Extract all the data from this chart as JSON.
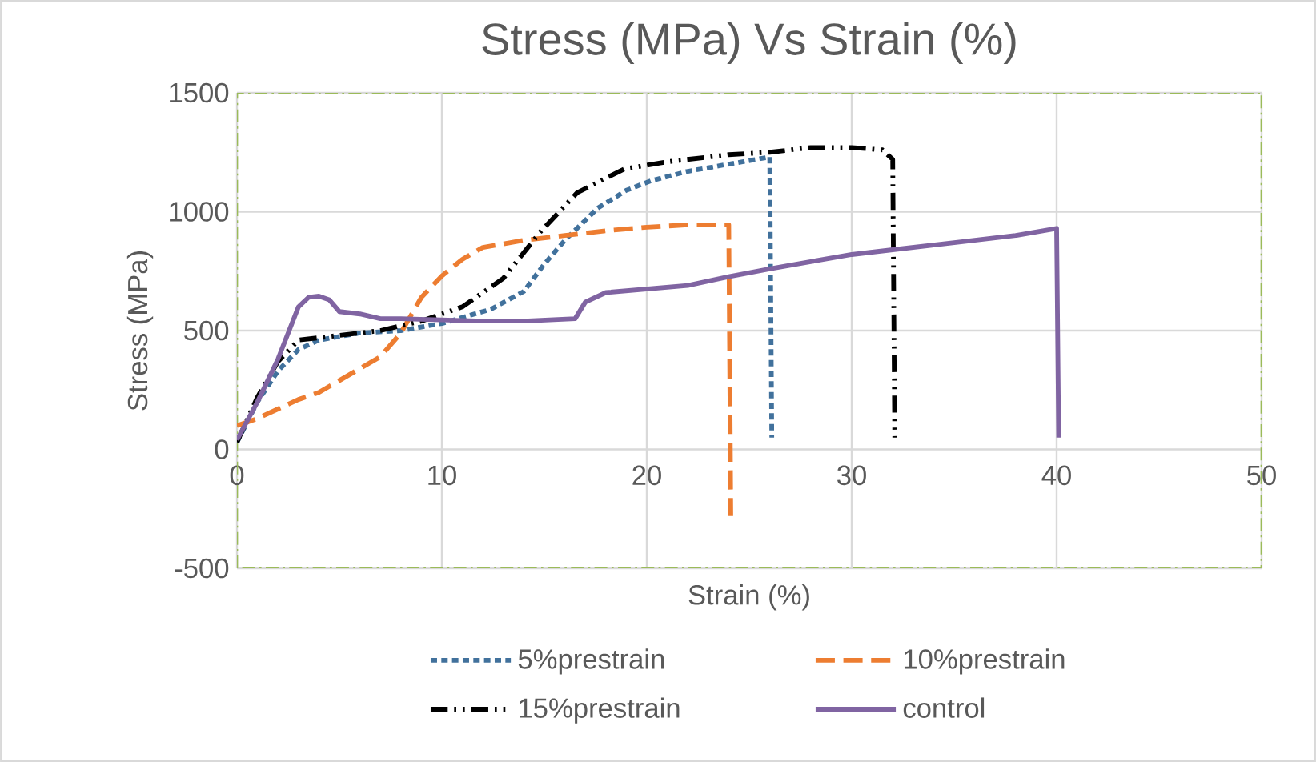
{
  "chart_data": {
    "type": "line",
    "title": "Stress (MPa) Vs Strain (%)",
    "xlabel": "Strain (%)",
    "ylabel": "Stress (MPa)",
    "xlim": [
      0,
      50
    ],
    "xticks": [
      0,
      10,
      20,
      30,
      40,
      50
    ],
    "ylim": [
      -500,
      1500
    ],
    "yticks": [
      -500,
      0,
      500,
      1000,
      1500
    ],
    "grid": true,
    "legend": "bottom",
    "marker": "none",
    "series": [
      {
        "name": "5%prestrain",
        "color": "#41719c",
        "line_style": "dotted",
        "x": [
          0,
          1,
          2,
          3,
          4,
          6,
          8,
          10,
          12.4,
          14,
          15,
          16,
          17.6,
          19,
          20.2,
          22,
          24,
          26,
          26.1
        ],
        "values": [
          30,
          200,
          330,
          420,
          460,
          490,
          500,
          530,
          590,
          665,
          780,
          880,
          1015,
          1090,
          1130,
          1170,
          1200,
          1230,
          50
        ]
      },
      {
        "name": "10%prestrain",
        "color": "#ed7d31",
        "line_style": "dashed",
        "x": [
          0,
          1,
          2,
          3,
          4,
          5,
          6,
          7,
          8,
          9,
          10,
          11,
          12,
          14,
          16,
          18,
          20,
          22,
          24,
          24.1
        ],
        "values": [
          100,
          130,
          170,
          210,
          240,
          290,
          340,
          390,
          490,
          640,
          730,
          800,
          850,
          880,
          900,
          920,
          935,
          945,
          945,
          -280
        ]
      },
      {
        "name": "15%prestrain",
        "color": "#000000",
        "line_style": "dashdotdotted",
        "x": [
          0,
          1,
          2,
          3,
          5,
          7,
          9,
          11,
          13,
          14.8,
          16.6,
          18.9,
          21,
          24,
          26,
          28,
          30,
          31.5,
          32,
          32.1
        ],
        "values": [
          30,
          220,
          370,
          460,
          480,
          500,
          540,
          600,
          720,
          915,
          1080,
          1180,
          1210,
          1240,
          1250,
          1270,
          1270,
          1260,
          1220,
          50
        ]
      },
      {
        "name": "control",
        "color": "#8064a2",
        "line_style": "solid",
        "x": [
          0,
          1,
          2,
          3,
          3.5,
          4,
          4.5,
          5,
          6,
          7,
          8,
          10,
          12,
          14,
          16.5,
          17,
          18,
          20,
          22,
          24,
          26,
          28,
          30,
          32,
          35,
          38,
          40,
          40.1
        ],
        "values": [
          40,
          200,
          380,
          600,
          640,
          645,
          630,
          580,
          570,
          550,
          550,
          545,
          540,
          540,
          550,
          620,
          660,
          675,
          690,
          727,
          760,
          790,
          820,
          840,
          870,
          900,
          930,
          50
        ]
      }
    ]
  }
}
